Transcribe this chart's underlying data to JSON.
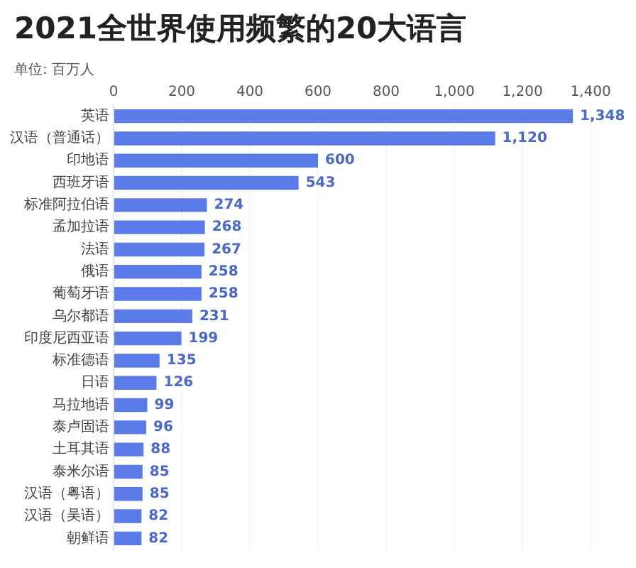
{
  "chart_data": {
    "type": "bar",
    "orientation": "horizontal",
    "title": "2021全世界使用频繁的20大语言",
    "xlabel": "单位: 百万人",
    "categories": [
      "英语",
      "汉语（普通话）",
      "印地语",
      "西班牙语",
      "标准阿拉伯语",
      "孟加拉语",
      "法语",
      "俄语",
      "葡萄牙语",
      "乌尔都语",
      "印度尼西亚语",
      "标准德语",
      "日语",
      "马拉地语",
      "泰卢固语",
      "土耳其语",
      "泰米尔语",
      "汉语（粤语）",
      "汉语（吴语）",
      "朝鲜语"
    ],
    "values": [
      1348,
      1120,
      600,
      543,
      274,
      268,
      267,
      258,
      258,
      231,
      199,
      135,
      126,
      99,
      96,
      88,
      85,
      85,
      82,
      82
    ],
    "color": "#5b7be8",
    "value_labels": [
      "1,348",
      "1,120",
      "600",
      "543",
      "274",
      "268",
      "267",
      "258",
      "258",
      "231",
      "199",
      "135",
      "126",
      "99",
      "96",
      "88",
      "85",
      "85",
      "82",
      "82"
    ],
    "xlim": [
      0,
      1400
    ],
    "xticks": [
      0,
      200,
      400,
      600,
      800,
      {
        "value": 1000,
        "label": "1,000"
      },
      {
        "value": 1200,
        "label": "1,200"
      },
      {
        "value": 1400,
        "label": "1,400"
      }
    ],
    "grid": "x"
  }
}
